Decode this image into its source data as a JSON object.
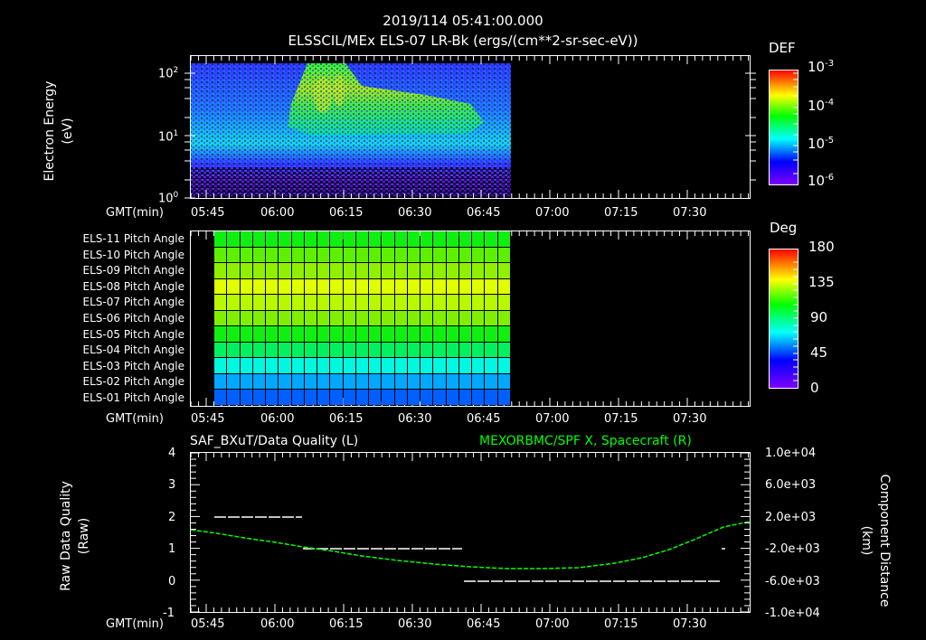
{
  "header": {
    "timestamp": "2019/114 05:41:00.000",
    "subtitle": "ELSSCIL/MEx ELS-07 LR-Bk  (ergs/(cm**2-sr-sec-eV))"
  },
  "time_axis": {
    "label": "GMT(min)",
    "ticks": [
      "05:45",
      "06:00",
      "06:15",
      "06:30",
      "06:45",
      "07:00",
      "07:15",
      "07:30"
    ]
  },
  "panel1": {
    "ylabel_line1": "Electron Energy",
    "ylabel_line2": "(eV)",
    "yticks": [
      {
        "base": "10",
        "exp": "2"
      },
      {
        "base": "10",
        "exp": "1"
      },
      {
        "base": "10",
        "exp": "0"
      }
    ],
    "colorbar": {
      "title": "DEF",
      "ticks": [
        {
          "base": "10",
          "exp": "-3"
        },
        {
          "base": "10",
          "exp": "-4"
        },
        {
          "base": "10",
          "exp": "-5"
        },
        {
          "base": "10",
          "exp": "-6"
        }
      ]
    }
  },
  "panel2": {
    "rows": [
      "ELS-11 Pitch Angle",
      "ELS-10 Pitch Angle",
      "ELS-09 Pitch Angle",
      "ELS-08 Pitch Angle",
      "ELS-07 Pitch Angle",
      "ELS-06 Pitch Angle",
      "ELS-05 Pitch Angle",
      "ELS-04 Pitch Angle",
      "ELS-03 Pitch Angle",
      "ELS-02 Pitch Angle",
      "ELS-01 Pitch Angle"
    ],
    "colorbar": {
      "title": "Deg",
      "ticks": [
        "180",
        "135",
        "90",
        "45",
        "0"
      ]
    }
  },
  "panel3": {
    "title_left": "SAF_BXuT/Data Quality (L)",
    "title_right": "MEXORBMC/SPF X, Spacecraft (R)",
    "title_right_color": "#00ff00",
    "ylabel_left_line1": "Raw Data Quality",
    "ylabel_left_line2": "(Raw)",
    "yticks_left": [
      "4",
      "3",
      "2",
      "1",
      "0",
      "-1"
    ],
    "ylabel_right_line1": "Component Distance",
    "ylabel_right_line2": "(km)",
    "yticks_right": [
      "1.0e+04",
      "6.0e+03",
      "2.0e+03",
      "-2.0e+03",
      "-6.0e+03",
      "-1.0e+04"
    ]
  },
  "chart_data": [
    {
      "type": "heatmap",
      "title": "ELSSCIL/MEx ELS-07 LR-Bk (ergs/(cm**2-sr-sec-eV))",
      "xlabel": "GMT(min)",
      "ylabel": "Electron Energy (eV)",
      "yscale": "log",
      "ylim": [
        1,
        150
      ],
      "x_ticks": [
        "05:45",
        "06:00",
        "06:15",
        "06:30",
        "06:45",
        "07:00",
        "07:15",
        "07:30"
      ],
      "x_range": [
        "05:41",
        "07:43"
      ],
      "data_extent": [
        "05:41",
        "06:51"
      ],
      "colorbar": {
        "label": "DEF",
        "scale": "log",
        "range": [
          1e-06,
          0.001
        ]
      },
      "features": [
        {
          "time": "06:07-06:43",
          "energy_eV": "8-100",
          "level": "~1e-4 (green)"
        },
        {
          "time": "05:41-06:51",
          "energy_eV": "4-10",
          "level": "~1e-5 (cyan)"
        },
        {
          "time": "05:41-06:51",
          "energy_eV": "1-3",
          "level": "~1e-6 (purple/black)"
        }
      ]
    },
    {
      "type": "heatmap",
      "title": "ELS Pitch Angles",
      "xlabel": "GMT(min)",
      "categories": [
        "ELS-11",
        "ELS-10",
        "ELS-09",
        "ELS-08",
        "ELS-07",
        "ELS-06",
        "ELS-05",
        "ELS-04",
        "ELS-03",
        "ELS-02",
        "ELS-01"
      ],
      "data_extent": [
        "05:47",
        "06:51"
      ],
      "colorbar": {
        "label": "Deg",
        "range": [
          0,
          180
        ]
      },
      "values_deg_approx": [
        105,
        115,
        125,
        140,
        130,
        115,
        100,
        80,
        60,
        45,
        30
      ]
    },
    {
      "type": "line",
      "title_left": "SAF_BXuT/Data Quality (L)",
      "title_right": "MEXORBMC/SPF X, Spacecraft (R)",
      "xlabel": "GMT(min)",
      "ylabel_left": "Raw Data Quality (Raw)",
      "ylim_left": [
        -1,
        4
      ],
      "ylabel_right": "Component Distance (km)",
      "ylim_right": [
        -10000,
        10000
      ],
      "series": [
        {
          "name": "Data Quality",
          "axis": "left",
          "color": "#ffffff",
          "segments": [
            {
              "x": [
                "05:46",
                "06:05"
              ],
              "y": 2
            },
            {
              "x": [
                "06:05",
                "06:41"
              ],
              "y": 1
            },
            {
              "x": [
                "06:41",
                "07:38"
              ],
              "y": 0
            },
            {
              "x": [
                "07:38",
                "07:38"
              ],
              "y": 1
            }
          ]
        },
        {
          "name": "SPF X",
          "axis": "right",
          "color": "#00ff00",
          "x": [
            "05:41",
            "05:50",
            "06:00",
            "06:10",
            "06:20",
            "06:30",
            "06:40",
            "06:50",
            "07:00",
            "07:10",
            "07:20",
            "07:30",
            "07:43"
          ],
          "values": [
            600,
            -200,
            -1000,
            -1900,
            -2600,
            -3300,
            -4200,
            -4800,
            -5200,
            -4900,
            -3600,
            -1500,
            2200
          ]
        }
      ]
    }
  ]
}
